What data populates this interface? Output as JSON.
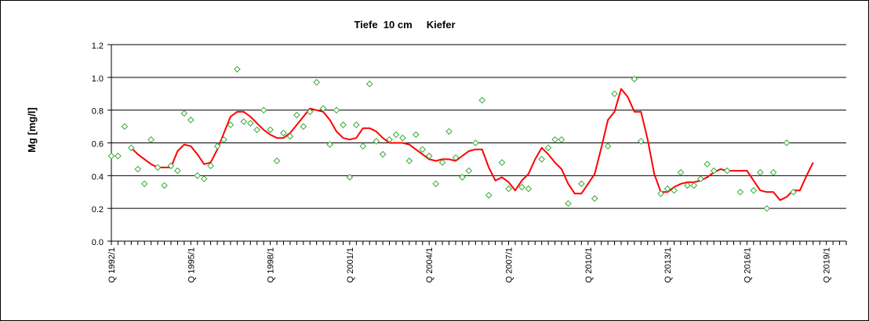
{
  "chart_data": {
    "type": "line",
    "title": "Tiefe  10 cm     Kiefer",
    "ylabel": "Mg [mg/l]",
    "xlabel": "",
    "ylim": [
      0,
      1.2
    ],
    "grid": true,
    "y_ticks": [
      "0.0",
      "0.2",
      "0.4",
      "0.6",
      "0.8",
      "1.0",
      "1.2"
    ],
    "x_ticks": [
      "Q 1992/1",
      "Q 1995/1",
      "Q 1998/1",
      "Q 2001/1",
      "Q 2004/1",
      "Q 2007/1",
      "Q 2010/1",
      "Q 2013/1",
      "Q 2016/1",
      "Q 2019/1"
    ],
    "x_range_quarters": [
      0,
      111
    ],
    "colors": {
      "points": "#33aa33",
      "line": "#ff0000",
      "grid": "#000000"
    },
    "series": [
      {
        "type": "scatter",
        "marker": "diamond",
        "x": [
          0,
          1,
          2,
          3,
          4,
          5,
          6,
          7,
          8,
          9,
          10,
          11,
          12,
          13,
          14,
          15,
          16,
          17,
          18,
          19,
          20,
          21,
          22,
          23,
          24,
          25,
          26,
          27,
          28,
          29,
          30,
          31,
          32,
          33,
          34,
          35,
          36,
          37,
          38,
          39,
          40,
          41,
          42,
          43,
          44,
          45,
          46,
          47,
          48,
          49,
          50,
          51,
          52,
          53,
          54,
          55,
          56,
          57,
          58,
          59,
          60,
          61,
          62,
          63,
          64,
          65,
          66,
          67,
          68,
          69,
          70,
          71,
          72,
          73,
          74,
          75,
          76,
          77,
          78,
          79,
          80,
          81,
          82,
          83,
          84,
          85,
          86,
          87,
          88,
          89,
          90,
          91,
          92,
          93,
          94,
          95,
          96,
          97,
          98,
          99,
          100,
          101,
          102,
          103,
          104,
          105,
          106,
          107,
          108,
          109,
          110
        ],
        "y": [
          0.52,
          0.52,
          0.7,
          0.57,
          0.44,
          0.35,
          0.62,
          0.45,
          0.34,
          0.46,
          0.43,
          0.78,
          0.74,
          0.4,
          0.38,
          0.46,
          0.58,
          0.62,
          0.71,
          1.05,
          0.73,
          0.72,
          0.68,
          0.8,
          0.68,
          0.49,
          0.66,
          0.64,
          0.77,
          0.7,
          0.79,
          0.97,
          0.81,
          0.59,
          0.8,
          0.71,
          0.39,
          0.71,
          0.58,
          0.96,
          0.61,
          0.53,
          0.62,
          0.65,
          0.63,
          0.49,
          0.65,
          0.56,
          0.52,
          0.35,
          0.48,
          0.67,
          0.51,
          0.39,
          0.43,
          0.6,
          0.86,
          0.28,
          null,
          0.48,
          0.32,
          null,
          0.33,
          0.32,
          null,
          0.5,
          0.57,
          0.62,
          0.62,
          0.23,
          null,
          0.35,
          null,
          0.26,
          null,
          0.58,
          0.9,
          null,
          null,
          0.99,
          0.61,
          null,
          null,
          0.29,
          0.32,
          0.31,
          0.42,
          0.34,
          0.34,
          0.38,
          0.47,
          0.43,
          null,
          0.43,
          null,
          0.3,
          null,
          0.31,
          0.42,
          0.2,
          0.42,
          null,
          0.6,
          0.3,
          null,
          null,
          null,
          null,
          null,
          null,
          null
        ]
      },
      {
        "type": "line",
        "x": [
          3,
          4,
          5,
          6,
          7,
          8,
          9,
          10,
          11,
          12,
          13,
          14,
          15,
          16,
          17,
          18,
          19,
          20,
          21,
          22,
          23,
          24,
          25,
          26,
          27,
          28,
          29,
          30,
          31,
          32,
          33,
          34,
          35,
          36,
          37,
          38,
          39,
          40,
          41,
          42,
          43,
          44,
          45,
          46,
          47,
          48,
          49,
          50,
          51,
          52,
          53,
          54,
          55,
          56,
          57,
          58,
          59,
          60,
          61,
          62,
          63,
          64,
          65,
          66,
          67,
          68,
          69,
          70,
          71,
          72,
          73,
          74,
          75,
          76,
          77,
          78,
          79,
          80,
          81,
          82,
          83,
          84,
          85,
          86,
          87,
          88,
          89,
          90,
          91,
          92,
          93,
          94,
          95,
          96,
          97,
          98,
          99,
          100,
          101,
          102,
          103,
          104,
          105,
          106
        ],
        "y": [
          0.57,
          0.53,
          0.5,
          0.47,
          0.45,
          0.45,
          0.45,
          0.55,
          0.59,
          0.58,
          0.53,
          0.47,
          0.48,
          0.56,
          0.66,
          0.76,
          0.79,
          0.79,
          0.76,
          0.72,
          0.68,
          0.65,
          0.63,
          0.63,
          0.66,
          0.71,
          0.76,
          0.81,
          0.8,
          0.79,
          0.74,
          0.67,
          0.63,
          0.62,
          0.63,
          0.69,
          0.69,
          0.67,
          0.63,
          0.6,
          0.6,
          0.6,
          0.59,
          0.56,
          0.53,
          0.5,
          0.49,
          0.5,
          0.5,
          0.49,
          0.52,
          0.55,
          0.56,
          0.56,
          0.45,
          0.37,
          0.39,
          0.36,
          0.31,
          0.37,
          0.41,
          0.5,
          0.57,
          0.53,
          0.48,
          0.44,
          0.35,
          0.29,
          0.29,
          0.35,
          0.41,
          0.57,
          0.74,
          0.79,
          0.93,
          0.88,
          0.79,
          0.79,
          0.62,
          0.41,
          0.3,
          0.3,
          0.33,
          0.35,
          0.36,
          0.36,
          0.37,
          0.39,
          0.42,
          0.44,
          0.43,
          0.43,
          0.43,
          0.43,
          0.37,
          0.31,
          0.3,
          0.3,
          0.25,
          0.27,
          0.31,
          0.31,
          0.4,
          0.48
        ]
      }
    ]
  }
}
